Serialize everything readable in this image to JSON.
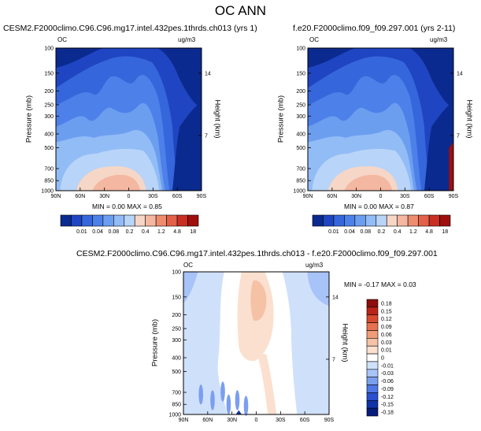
{
  "page_title": "OC ANN",
  "colors": {
    "abs_palette": [
      "#0b2a8f",
      "#1f45c2",
      "#3566db",
      "#4d80e8",
      "#6c9ef0",
      "#92bcf6",
      "#b8d4f8",
      "#f6d6c6",
      "#f4b7a1",
      "#ee8c6f",
      "#e26148",
      "#c92e22",
      "#9e0f0e"
    ],
    "diff_palette": [
      "#071c7a",
      "#1232a8",
      "#2950cf",
      "#4f77e6",
      "#7b9fef",
      "#a7c3f7",
      "#cfe0fb",
      "#ffffff",
      "#fbe0d0",
      "#f6c2a6",
      "#f09c78",
      "#e8724f",
      "#d84a2e",
      "#ba2416",
      "#8c0d0c"
    ]
  },
  "chart_data": [
    {
      "type": "heatmap",
      "id": "panel1",
      "title": "CESM2.F2000climo.C96.C96.mg17.intel.432pes.1thrds.ch013 (yrs 1)",
      "left_label": "OC",
      "right_label": "ug/m3",
      "xlabel": "",
      "ylabel": "Pressure (mb)",
      "y2label": "Height (km)",
      "xticks": [
        "90N",
        "60N",
        "30N",
        "0",
        "30S",
        "60S",
        "90S"
      ],
      "yticks": [
        "100",
        "150",
        "200",
        "250",
        "300",
        "400",
        "500",
        "700",
        "850",
        "1000"
      ],
      "y2ticks": [
        "14",
        "7"
      ],
      "ylim": [
        1000,
        100
      ],
      "min_text": "MIN =  0.00  MAX =  0.85",
      "colorbar_labels": [
        "0.01",
        "0.04",
        "0.08",
        "0.2",
        "0.4",
        "1.2",
        "4.8",
        "18"
      ],
      "colorbar_edge_labels": [
        "0.01",
        "0.04",
        "0.08",
        "0.2",
        "0.4",
        "1.2",
        "4.8",
        "18"
      ]
    },
    {
      "type": "heatmap",
      "id": "panel2",
      "title": "f.e20.F2000climo.f09_f09.297.001 (yrs 2-11)",
      "left_label": "OC",
      "right_label": "ug/m3",
      "xlabel": "",
      "ylabel": "Pressure (mb)",
      "y2label": "Height (km)",
      "xticks": [
        "90N",
        "60N",
        "30N",
        "0",
        "30S",
        "60S",
        "90S"
      ],
      "yticks": [
        "100",
        "150",
        "200",
        "250",
        "300",
        "400",
        "500",
        "700",
        "850",
        "1000"
      ],
      "y2ticks": [
        "14",
        "7"
      ],
      "ylim": [
        1000,
        100
      ],
      "min_text": "MIN =  0.00  MAX =  0.87",
      "colorbar_labels": [
        "0.01",
        "0.04",
        "0.08",
        "0.2",
        "0.4",
        "1.2",
        "4.8",
        "18"
      ]
    },
    {
      "type": "heatmap",
      "id": "panel3",
      "title": "CESM2.F2000climo.C96.C96.mg17.intel.432pes.1thrds.ch013 - f.e20.F2000climo.f09_f09.297.001",
      "left_label": "OC",
      "right_label": "ug/m3",
      "xlabel": "",
      "ylabel": "Pressure (mb)",
      "y2label": "Height (km)",
      "xticks": [
        "90N",
        "60N",
        "30N",
        "0",
        "30S",
        "60S",
        "90S"
      ],
      "yticks": [
        "100",
        "150",
        "200",
        "250",
        "300",
        "400",
        "500",
        "700",
        "850",
        "1000"
      ],
      "y2ticks": [
        "14",
        "7"
      ],
      "ylim": [
        1000,
        100
      ],
      "min_text": "MIN = -0.17  MAX =  0.03",
      "colorbar_labels": [
        "0.18",
        "0.15",
        "0.12",
        "0.09",
        "0.06",
        "0.03",
        "0.01",
        "0",
        "-0.01",
        "-0.03",
        "-0.06",
        "-0.09",
        "-0.12",
        "-0.15",
        "-0.18"
      ]
    }
  ]
}
